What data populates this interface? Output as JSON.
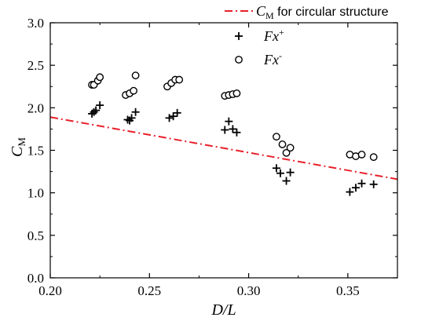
{
  "chart_data": {
    "type": "scatter",
    "xlabel": "D/L",
    "ylabel": "C_M",
    "xlim": [
      0.2,
      0.375
    ],
    "ylim": [
      0.0,
      3.0
    ],
    "x_ticks": [
      0.2,
      0.25,
      0.3,
      0.35
    ],
    "x_tick_labels": [
      "0.20",
      "0.25",
      "0.30",
      "0.35"
    ],
    "y_ticks": [
      0.0,
      0.5,
      1.0,
      1.5,
      2.0,
      2.5,
      3.0
    ],
    "y_tick_labels": [
      "0.0",
      "0.5",
      "1.0",
      "1.5",
      "2.0",
      "2.5",
      "3.0"
    ],
    "grid": false,
    "legend_position": "top-right",
    "series": [
      {
        "name": "C_M for circular structure",
        "kind": "line",
        "style": "dash-dot",
        "color": "#e8202a",
        "x": [
          0.2,
          0.375
        ],
        "y": [
          1.89,
          1.16
        ]
      },
      {
        "name": "Fx+",
        "kind": "scatter",
        "marker": "plus",
        "color": "#000000",
        "x": [
          0.221,
          0.222,
          0.223,
          0.225,
          0.239,
          0.24,
          0.241,
          0.243,
          0.26,
          0.262,
          0.264,
          0.288,
          0.29,
          0.292,
          0.294,
          0.314,
          0.316,
          0.319,
          0.321,
          0.351,
          0.354,
          0.357,
          0.363
        ],
        "y": [
          1.93,
          1.95,
          1.97,
          2.03,
          1.86,
          1.85,
          1.88,
          1.95,
          1.88,
          1.9,
          1.94,
          1.74,
          1.84,
          1.75,
          1.71,
          1.29,
          1.23,
          1.14,
          1.24,
          1.01,
          1.06,
          1.11,
          1.1
        ]
      },
      {
        "name": "Fx-",
        "kind": "scatter",
        "marker": "open-circle",
        "color": "#000000",
        "x": [
          0.221,
          0.222,
          0.224,
          0.225,
          0.238,
          0.24,
          0.242,
          0.243,
          0.259,
          0.261,
          0.263,
          0.265,
          0.288,
          0.29,
          0.292,
          0.294,
          0.314,
          0.317,
          0.319,
          0.321,
          0.351,
          0.354,
          0.357,
          0.363
        ],
        "y": [
          2.27,
          2.27,
          2.32,
          2.36,
          2.15,
          2.17,
          2.2,
          2.38,
          2.25,
          2.29,
          2.33,
          2.33,
          2.14,
          2.15,
          2.16,
          2.17,
          1.66,
          1.57,
          1.47,
          1.53,
          1.45,
          1.43,
          1.45,
          1.42
        ]
      }
    ],
    "legend": [
      {
        "base": "C",
        "sub": "M",
        "rest": " for circular structure"
      },
      {
        "base": "Fx",
        "sup": "+"
      },
      {
        "base": "Fx",
        "sup": "-"
      }
    ],
    "ylabel_parts": {
      "base": "C",
      "sub": "M"
    }
  }
}
